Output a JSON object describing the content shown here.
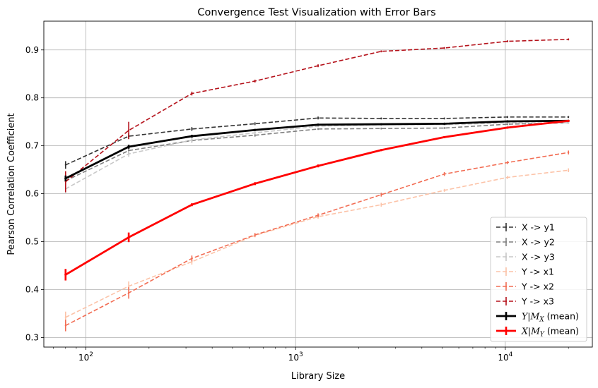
{
  "chart_data": {
    "type": "line",
    "title": "Convergence Test Visualization with Error Bars",
    "xlabel": "Library Size",
    "ylabel": "Pearson Correlation Coefficient",
    "xscale": "log",
    "xlim": [
      63,
      26000
    ],
    "ylim": [
      0.28,
      0.96
    ],
    "x": [
      80,
      160,
      320,
      640,
      1280,
      2560,
      5120,
      10240,
      20000
    ],
    "x_tick_labels": [
      {
        "value": 100,
        "base": "10",
        "exp": "2"
      },
      {
        "value": 1000,
        "base": "10",
        "exp": "3"
      },
      {
        "value": 10000,
        "base": "10",
        "exp": "4"
      }
    ],
    "y_ticks": [
      0.3,
      0.4,
      0.5,
      0.6,
      0.7,
      0.8,
      0.9
    ],
    "y_tick_labels": [
      "0.3",
      "0.4",
      "0.5",
      "0.6",
      "0.7",
      "0.8",
      "0.9"
    ],
    "grid": true,
    "legend_position": "lower-right",
    "series": [
      {
        "name": "X -> y1",
        "color": "#333333",
        "style": "dashed",
        "width": 1.6,
        "values": [
          0.66,
          0.72,
          0.735,
          0.746,
          0.758,
          0.757,
          0.757,
          0.76,
          0.76
        ],
        "errors": [
          0.008,
          0.006,
          0.004,
          0.003,
          0.003,
          0.002,
          0.002,
          0.002,
          0.002
        ]
      },
      {
        "name": "X -> y2",
        "color": "#808080",
        "style": "dashed",
        "width": 1.6,
        "values": [
          0.627,
          0.69,
          0.711,
          0.722,
          0.735,
          0.736,
          0.737,
          0.745,
          0.748
        ],
        "errors": [
          0.008,
          0.006,
          0.004,
          0.003,
          0.002,
          0.002,
          0.002,
          0.002,
          0.002
        ]
      },
      {
        "name": "X -> y3",
        "color": "#c8c8c8",
        "style": "dashed",
        "width": 1.6,
        "values": [
          0.61,
          0.683,
          0.712,
          0.727,
          0.741,
          0.744,
          0.744,
          0.748,
          0.748
        ],
        "errors": [
          0.008,
          0.006,
          0.004,
          0.003,
          0.002,
          0.002,
          0.002,
          0.002,
          0.002
        ]
      },
      {
        "name": "Y -> x1",
        "color": "#fcc3a8",
        "style": "dashed",
        "width": 1.6,
        "values": [
          0.342,
          0.407,
          0.458,
          0.513,
          0.552,
          0.577,
          0.607,
          0.634,
          0.649
        ],
        "errors": [
          0.012,
          0.01,
          0.006,
          0.004,
          0.004,
          0.004,
          0.003,
          0.003,
          0.004
        ]
      },
      {
        "name": "Y -> x2",
        "color": "#f26d54",
        "style": "dashed",
        "width": 1.6,
        "values": [
          0.325,
          0.393,
          0.465,
          0.514,
          0.555,
          0.598,
          0.641,
          0.665,
          0.686
        ],
        "errors": [
          0.012,
          0.012,
          0.006,
          0.004,
          0.004,
          0.004,
          0.004,
          0.003,
          0.004
        ]
      },
      {
        "name": "Y -> x3",
        "color": "#b5121b",
        "style": "dashed",
        "width": 1.6,
        "values": [
          0.625,
          0.732,
          0.809,
          0.835,
          0.867,
          0.897,
          0.904,
          0.918,
          0.922
        ],
        "errors": [
          0.022,
          0.018,
          0.004,
          0.003,
          0.003,
          0.002,
          0.002,
          0.002,
          0.002
        ]
      },
      {
        "name": "Y|M_X (mean)",
        "label_math": "Y|M",
        "label_sub": "X",
        "label_rest": " (mean)",
        "color": "#000000",
        "style": "solid",
        "width": 2.8,
        "values": [
          0.632,
          0.698,
          0.72,
          0.733,
          0.744,
          0.745,
          0.746,
          0.751,
          0.752
        ],
        "errors": [
          0.006,
          0.004,
          0.003,
          0.002,
          0.002,
          0.001,
          0.001,
          0.001,
          0.001
        ]
      },
      {
        "name": "X|M_Y (mean)",
        "label_math": "X|M",
        "label_sub": "Y",
        "label_rest": " (mean)",
        "color": "#ff0000",
        "style": "solid",
        "width": 2.8,
        "values": [
          0.431,
          0.509,
          0.577,
          0.621,
          0.658,
          0.691,
          0.718,
          0.738,
          0.752
        ],
        "errors": [
          0.012,
          0.01,
          0.003,
          0.003,
          0.003,
          0.002,
          0.002,
          0.002,
          0.002
        ]
      }
    ]
  }
}
